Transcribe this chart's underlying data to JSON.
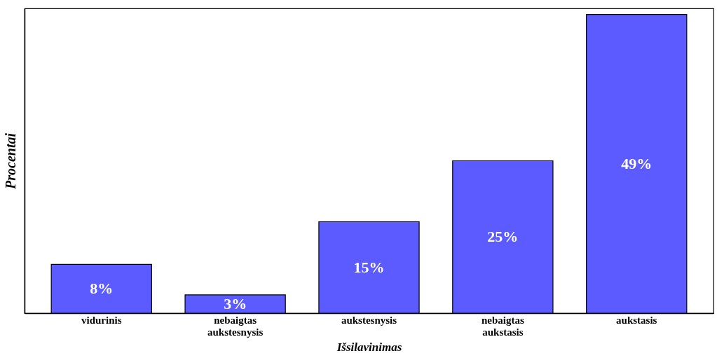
{
  "chart_data": {
    "type": "bar",
    "xlabel": "Išsilavinimas",
    "ylabel": "Procentai",
    "categories": [
      "vidurinis",
      "nebaigtas aukstesnysis",
      "aukstesnysis",
      "nebaigtas aukstasis",
      "aukstasis"
    ],
    "values": [
      8,
      3,
      15,
      25,
      49
    ],
    "value_labels": [
      "8%",
      "3%",
      "15%",
      "25%",
      "49%"
    ],
    "color": "#5b5bff",
    "tick_labels": "x",
    "grid": false
  }
}
